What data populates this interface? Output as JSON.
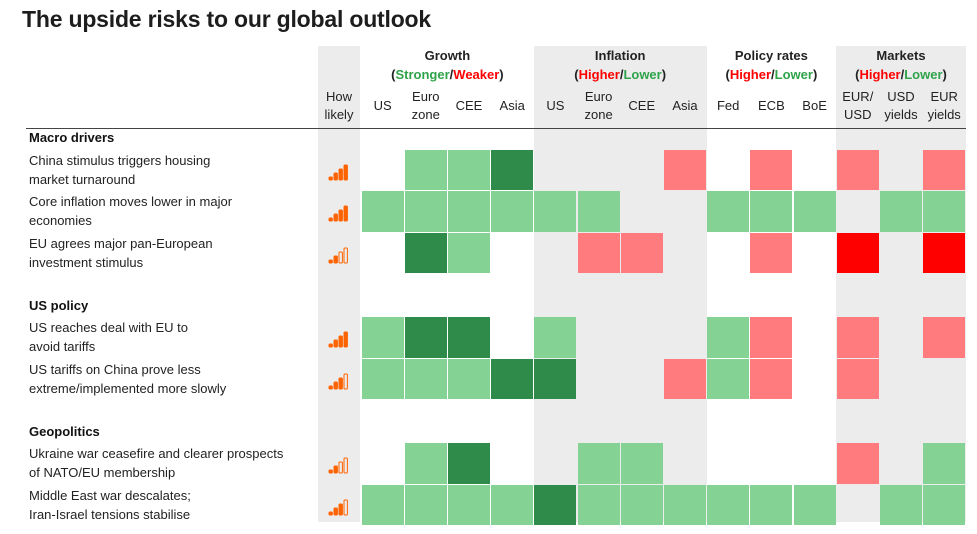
{
  "title": "The upside risks to our global outlook",
  "colors": {
    "strong_green": "#2e8b4a",
    "light_green": "#84d394",
    "light_red": "#ff7b7e",
    "strong_red": "#ff0000",
    "grey": "#ececec",
    "white": "#ffffff",
    "green_text": "#2fa34a",
    "red_text": "#ff0000",
    "bar_on": "#ff6200",
    "bar_off": "#f4b183"
  },
  "groups": [
    {
      "name": "Growth",
      "pos": "Stronger",
      "neg": "Weaker",
      "pos_color": "green",
      "neg_color": "red"
    },
    {
      "name": "Inflation",
      "pos": "Higher",
      "neg": "Lower",
      "pos_color": "red",
      "neg_color": "green"
    },
    {
      "name": "Policy rates",
      "pos": "Higher",
      "neg": "Lower",
      "pos_color": "red",
      "neg_color": "green"
    },
    {
      "name": "Markets",
      "pos": "Higher",
      "neg": "Lower",
      "pos_color": "red",
      "neg_color": "green"
    }
  ],
  "likely_header": [
    "How",
    "likely"
  ],
  "columns": [
    {
      "lines": [
        "US"
      ],
      "group": 0
    },
    {
      "lines": [
        "Euro",
        "zone"
      ],
      "group": 0
    },
    {
      "lines": [
        "CEE"
      ],
      "group": 0
    },
    {
      "lines": [
        "Asia"
      ],
      "group": 0
    },
    {
      "lines": [
        "US"
      ],
      "group": 1
    },
    {
      "lines": [
        "Euro",
        "zone"
      ],
      "group": 1
    },
    {
      "lines": [
        "CEE"
      ],
      "group": 1
    },
    {
      "lines": [
        "Asia"
      ],
      "group": 1
    },
    {
      "lines": [
        "Fed"
      ],
      "group": 2
    },
    {
      "lines": [
        "ECB"
      ],
      "group": 2
    },
    {
      "lines": [
        "BoE"
      ],
      "group": 2
    },
    {
      "lines": [
        "EUR/",
        "USD"
      ],
      "group": 3
    },
    {
      "lines": [
        "USD",
        "yields"
      ],
      "group": 3
    },
    {
      "lines": [
        "EUR",
        "yields"
      ],
      "group": 3
    }
  ],
  "sections": [
    {
      "name": "Macro drivers",
      "rows": [
        {
          "lines": [
            "China stimulus triggers housing",
            "market turnaround"
          ],
          "likelihood": 4,
          "cells": [
            0,
            1,
            1,
            2,
            0,
            0,
            0,
            -1,
            0,
            -1,
            0,
            -1,
            0,
            -1
          ]
        },
        {
          "lines": [
            "Core inflation moves lower in major",
            "economies"
          ],
          "likelihood": 4,
          "cells": [
            1,
            1,
            1,
            1,
            1,
            1,
            0,
            0,
            1,
            1,
            1,
            0,
            1,
            1
          ]
        },
        {
          "lines": [
            "EU agrees major pan-European",
            "investment stimulus"
          ],
          "likelihood": 2,
          "cells": [
            0,
            2,
            1,
            0,
            0,
            -1,
            -1,
            0,
            0,
            -1,
            0,
            -2,
            0,
            -2
          ]
        }
      ]
    },
    {
      "name": "US policy",
      "rows": [
        {
          "lines": [
            "US reaches deal with EU to",
            "avoid tariffs"
          ],
          "likelihood": 4,
          "cells": [
            1,
            2,
            2,
            0,
            1,
            0,
            0,
            0,
            1,
            -1,
            0,
            -1,
            0,
            -1
          ]
        },
        {
          "lines": [
            "US tariffs on China prove less",
            "extreme/implemented more slowly"
          ],
          "likelihood": 3,
          "cells": [
            1,
            1,
            1,
            2,
            2,
            0,
            0,
            -1,
            1,
            -1,
            0,
            -1,
            0,
            0
          ]
        }
      ]
    },
    {
      "name": "Geopolitics",
      "rows": [
        {
          "lines": [
            "Ukraine war ceasefire and clearer prospects",
            "of NATO/EU membership"
          ],
          "likelihood": 2,
          "cells": [
            0,
            1,
            2,
            0,
            0,
            1,
            1,
            0,
            0,
            0,
            0,
            -1,
            0,
            1
          ]
        },
        {
          "lines": [
            "Middle East war descalates;",
            "Iran-Israel tensions stabilise"
          ],
          "likelihood": 3,
          "cells": [
            1,
            1,
            1,
            1,
            2,
            1,
            1,
            1,
            1,
            1,
            1,
            0,
            1,
            1
          ]
        }
      ]
    }
  ],
  "chart_data": {
    "type": "heatmap",
    "title": "The upside risks to our global outlook",
    "scale": {
      "2": "strongly positive (dark green)",
      "1": "positive (light green)",
      "0": "neutral",
      "-1": "negative (light red)",
      "-2": "strongly negative (red)"
    },
    "likelihood_scale": "number of highlighted bars out of 4",
    "columns": [
      "Growth: US",
      "Growth: Euro zone",
      "Growth: CEE",
      "Growth: Asia",
      "Inflation: US",
      "Inflation: Euro zone",
      "Inflation: CEE",
      "Inflation: Asia",
      "Policy rates: Fed",
      "Policy rates: ECB",
      "Policy rates: BoE",
      "Markets: EUR/USD",
      "Markets: USD yields",
      "Markets: EUR yields"
    ],
    "rows": [
      {
        "section": "Macro drivers",
        "label": "China stimulus triggers housing market turnaround",
        "likelihood": 4,
        "values": [
          0,
          1,
          1,
          2,
          0,
          0,
          0,
          -1,
          0,
          -1,
          0,
          -1,
          0,
          -1
        ]
      },
      {
        "section": "Macro drivers",
        "label": "Core inflation moves lower in major economies",
        "likelihood": 4,
        "values": [
          1,
          1,
          1,
          1,
          1,
          1,
          0,
          0,
          1,
          1,
          1,
          0,
          1,
          1
        ]
      },
      {
        "section": "Macro drivers",
        "label": "EU agrees major pan-European investment stimulus",
        "likelihood": 2,
        "values": [
          0,
          2,
          1,
          0,
          0,
          -1,
          -1,
          0,
          0,
          -1,
          0,
          -2,
          0,
          -2
        ]
      },
      {
        "section": "US policy",
        "label": "US reaches deal with EU to avoid tariffs",
        "likelihood": 4,
        "values": [
          1,
          2,
          2,
          0,
          1,
          0,
          0,
          0,
          1,
          -1,
          0,
          -1,
          0,
          -1
        ]
      },
      {
        "section": "US policy",
        "label": "US tariffs on China prove less extreme/implemented more slowly",
        "likelihood": 3,
        "values": [
          1,
          1,
          1,
          2,
          2,
          0,
          0,
          -1,
          1,
          -1,
          0,
          -1,
          0,
          0
        ]
      },
      {
        "section": "Geopolitics",
        "label": "Ukraine war ceasefire and clearer prospects of NATO/EU membership",
        "likelihood": 2,
        "values": [
          0,
          1,
          2,
          0,
          0,
          1,
          1,
          0,
          0,
          0,
          0,
          -1,
          0,
          1
        ]
      },
      {
        "section": "Geopolitics",
        "label": "Middle East war descalates; Iran-Israel tensions stabilise",
        "likelihood": 3,
        "values": [
          1,
          1,
          1,
          1,
          2,
          1,
          1,
          1,
          1,
          1,
          1,
          0,
          1,
          1
        ]
      }
    ]
  }
}
